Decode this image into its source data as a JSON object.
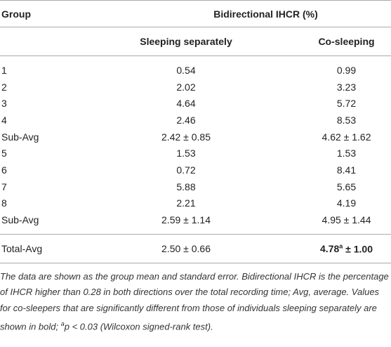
{
  "header": {
    "group": "Group",
    "span": "Bidirectional IHCR (%)",
    "col1": "Sleeping separately",
    "col2": "Co-sleeping"
  },
  "rows": [
    [
      "1",
      "0.54",
      "0.99"
    ],
    [
      "2",
      "2.02",
      "3.23"
    ],
    [
      "3",
      "4.64",
      "5.72"
    ],
    [
      "4",
      "2.46",
      "8.53"
    ],
    [
      "Sub-Avg",
      "2.42 ± 0.85",
      "4.62 ± 1.62"
    ],
    [
      "5",
      "1.53",
      "1.53"
    ],
    [
      "6",
      "0.72",
      "8.41"
    ],
    [
      "7",
      "5.88",
      "5.65"
    ],
    [
      "8",
      "2.21",
      "4.19"
    ],
    [
      "Sub-Avg",
      "2.59 ± 1.14",
      "4.95 ± 1.44"
    ]
  ],
  "total": {
    "group": "Total-Avg",
    "col1": "2.50 ± 0.66",
    "col2": {
      "main": "4.78",
      "sup": "a",
      "rest": " ± 1.00"
    }
  },
  "footnote": {
    "text": "The data are shown as the group mean and standard error. Bidirectional IHCR is the percentage of IHCR higher than 0.28 in both directions over the total recording time; Avg, average. Values for co-sleepers that are significantly different from those of individuals sleeping separately are shown in bold; ",
    "sup": "a",
    "rest": "p < 0.03 (Wilcoxon signed-rank test)."
  }
}
